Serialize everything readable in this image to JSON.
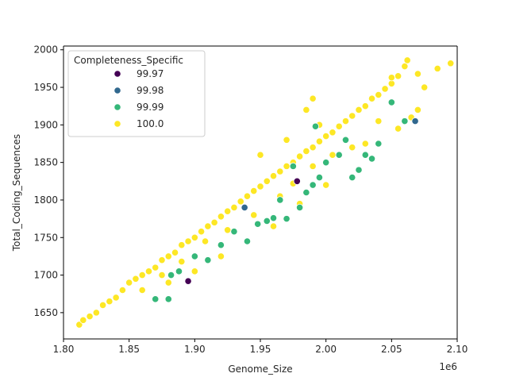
{
  "chart_data": {
    "type": "scatter",
    "xlabel": "Genome_Size",
    "ylabel": "Total_Coding_Sequences",
    "x_offset_label": "1e6",
    "xlim": [
      1.8,
      2.1
    ],
    "ylim": [
      1615,
      2005
    ],
    "x_ticks": [
      1.8,
      1.85,
      1.9,
      1.95,
      2.0,
      2.05,
      2.1
    ],
    "x_tick_labels": [
      "1.80",
      "1.85",
      "1.90",
      "1.95",
      "2.00",
      "2.05",
      "2.10"
    ],
    "y_ticks": [
      1650,
      1700,
      1750,
      1800,
      1850,
      1900,
      1950,
      2000
    ],
    "y_tick_labels": [
      "1650",
      "1700",
      "1750",
      "1800",
      "1850",
      "1900",
      "1950",
      "2000"
    ],
    "grid": false,
    "legend": {
      "title": "Completeness_Specific",
      "placement": "upper-left",
      "entries": [
        {
          "label": "99.97",
          "color": "#440154"
        },
        {
          "label": "99.98",
          "color": "#31688e"
        },
        {
          "label": "99.99",
          "color": "#35b779"
        },
        {
          "label": "100.0",
          "color": "#fde725"
        }
      ]
    },
    "series": [
      {
        "name": "99.97",
        "color": "#440154",
        "points": [
          [
            1.895,
            1692
          ],
          [
            1.978,
            1825
          ]
        ]
      },
      {
        "name": "99.98",
        "color": "#31688e",
        "points": [
          [
            1.938,
            1790
          ],
          [
            2.068,
            1905
          ]
        ]
      },
      {
        "name": "99.99",
        "color": "#35b779",
        "points": [
          [
            1.87,
            1668
          ],
          [
            1.88,
            1668
          ],
          [
            1.882,
            1700
          ],
          [
            1.888,
            1705
          ],
          [
            1.9,
            1725
          ],
          [
            1.91,
            1720
          ],
          [
            1.92,
            1740
          ],
          [
            1.93,
            1758
          ],
          [
            1.94,
            1745
          ],
          [
            1.948,
            1768
          ],
          [
            1.955,
            1772
          ],
          [
            1.96,
            1776
          ],
          [
            1.97,
            1775
          ],
          [
            1.98,
            1790
          ],
          [
            1.985,
            1810
          ],
          [
            1.99,
            1820
          ],
          [
            1.995,
            1830
          ],
          [
            2.0,
            1850
          ],
          [
            2.01,
            1860
          ],
          [
            2.015,
            1880
          ],
          [
            2.02,
            1830
          ],
          [
            2.025,
            1840
          ],
          [
            2.03,
            1860
          ],
          [
            2.035,
            1855
          ],
          [
            2.04,
            1875
          ],
          [
            2.05,
            1930
          ],
          [
            2.06,
            1905
          ],
          [
            1.965,
            1800
          ],
          [
            1.975,
            1845
          ],
          [
            1.992,
            1898
          ]
        ]
      },
      {
        "name": "100.0",
        "color": "#fde725",
        "points": [
          [
            1.812,
            1634
          ],
          [
            1.815,
            1640
          ],
          [
            1.82,
            1645
          ],
          [
            1.825,
            1650
          ],
          [
            1.83,
            1660
          ],
          [
            1.835,
            1665
          ],
          [
            1.84,
            1670
          ],
          [
            1.845,
            1680
          ],
          [
            1.85,
            1690
          ],
          [
            1.855,
            1695
          ],
          [
            1.86,
            1700
          ],
          [
            1.865,
            1705
          ],
          [
            1.87,
            1710
          ],
          [
            1.875,
            1720
          ],
          [
            1.88,
            1725
          ],
          [
            1.885,
            1730
          ],
          [
            1.89,
            1740
          ],
          [
            1.895,
            1745
          ],
          [
            1.9,
            1750
          ],
          [
            1.905,
            1758
          ],
          [
            1.91,
            1765
          ],
          [
            1.915,
            1770
          ],
          [
            1.92,
            1778
          ],
          [
            1.925,
            1785
          ],
          [
            1.93,
            1790
          ],
          [
            1.935,
            1798
          ],
          [
            1.94,
            1805
          ],
          [
            1.945,
            1812
          ],
          [
            1.95,
            1818
          ],
          [
            1.955,
            1825
          ],
          [
            1.96,
            1832
          ],
          [
            1.965,
            1838
          ],
          [
            1.97,
            1845
          ],
          [
            1.975,
            1850
          ],
          [
            1.98,
            1858
          ],
          [
            1.985,
            1865
          ],
          [
            1.99,
            1870
          ],
          [
            1.995,
            1878
          ],
          [
            2.0,
            1885
          ],
          [
            2.005,
            1890
          ],
          [
            2.01,
            1898
          ],
          [
            2.015,
            1905
          ],
          [
            2.02,
            1912
          ],
          [
            2.025,
            1920
          ],
          [
            2.03,
            1925
          ],
          [
            2.035,
            1935
          ],
          [
            2.04,
            1940
          ],
          [
            2.045,
            1948
          ],
          [
            2.05,
            1955
          ],
          [
            2.055,
            1965
          ],
          [
            2.06,
            1978
          ],
          [
            2.07,
            1968
          ],
          [
            2.075,
            1950
          ],
          [
            2.085,
            1975
          ],
          [
            2.095,
            1982
          ],
          [
            2.062,
            1986
          ],
          [
            2.05,
            1963
          ],
          [
            1.86,
            1680
          ],
          [
            1.88,
            1690
          ],
          [
            1.9,
            1705
          ],
          [
            1.92,
            1725
          ],
          [
            1.94,
            1745
          ],
          [
            1.96,
            1765
          ],
          [
            1.98,
            1795
          ],
          [
            2.0,
            1820
          ],
          [
            1.985,
            1920
          ],
          [
            1.99,
            1935
          ],
          [
            1.995,
            1900
          ],
          [
            1.97,
            1880
          ],
          [
            1.95,
            1860
          ],
          [
            2.03,
            1875
          ],
          [
            2.04,
            1905
          ],
          [
            2.055,
            1895
          ],
          [
            2.065,
            1910
          ],
          [
            2.07,
            1920
          ],
          [
            1.875,
            1700
          ],
          [
            1.89,
            1718
          ],
          [
            1.908,
            1745
          ],
          [
            1.925,
            1760
          ],
          [
            1.945,
            1780
          ],
          [
            1.965,
            1805
          ],
          [
            1.975,
            1822
          ],
          [
            1.99,
            1845
          ],
          [
            2.005,
            1860
          ],
          [
            2.02,
            1870
          ]
        ]
      }
    ]
  }
}
